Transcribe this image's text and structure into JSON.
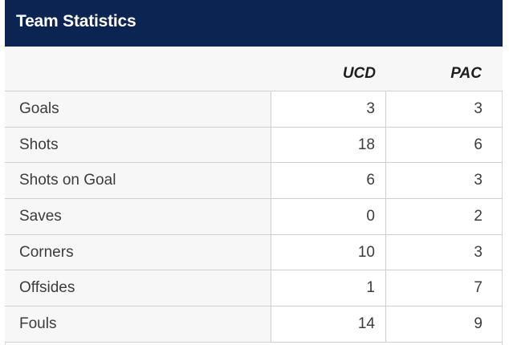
{
  "header": {
    "title": "Team Statistics"
  },
  "table": {
    "columns": [
      "UCD",
      "PAC"
    ],
    "rows": [
      {
        "label": "Goals",
        "ucd": "3",
        "pac": "3"
      },
      {
        "label": "Shots",
        "ucd": "18",
        "pac": "6"
      },
      {
        "label": "Shots on Goal",
        "ucd": "6",
        "pac": "3"
      },
      {
        "label": "Saves",
        "ucd": "0",
        "pac": "2"
      },
      {
        "label": "Corners",
        "ucd": "10",
        "pac": "3"
      },
      {
        "label": "Offsides",
        "ucd": "1",
        "pac": "7"
      },
      {
        "label": "Fouls",
        "ucd": "14",
        "pac": "9"
      }
    ]
  },
  "colors": {
    "header_background": "#0c2451",
    "header_text": "#ffffff",
    "label_column_background": "#f7f7f7",
    "grid_lines": "#cfcfcf"
  }
}
